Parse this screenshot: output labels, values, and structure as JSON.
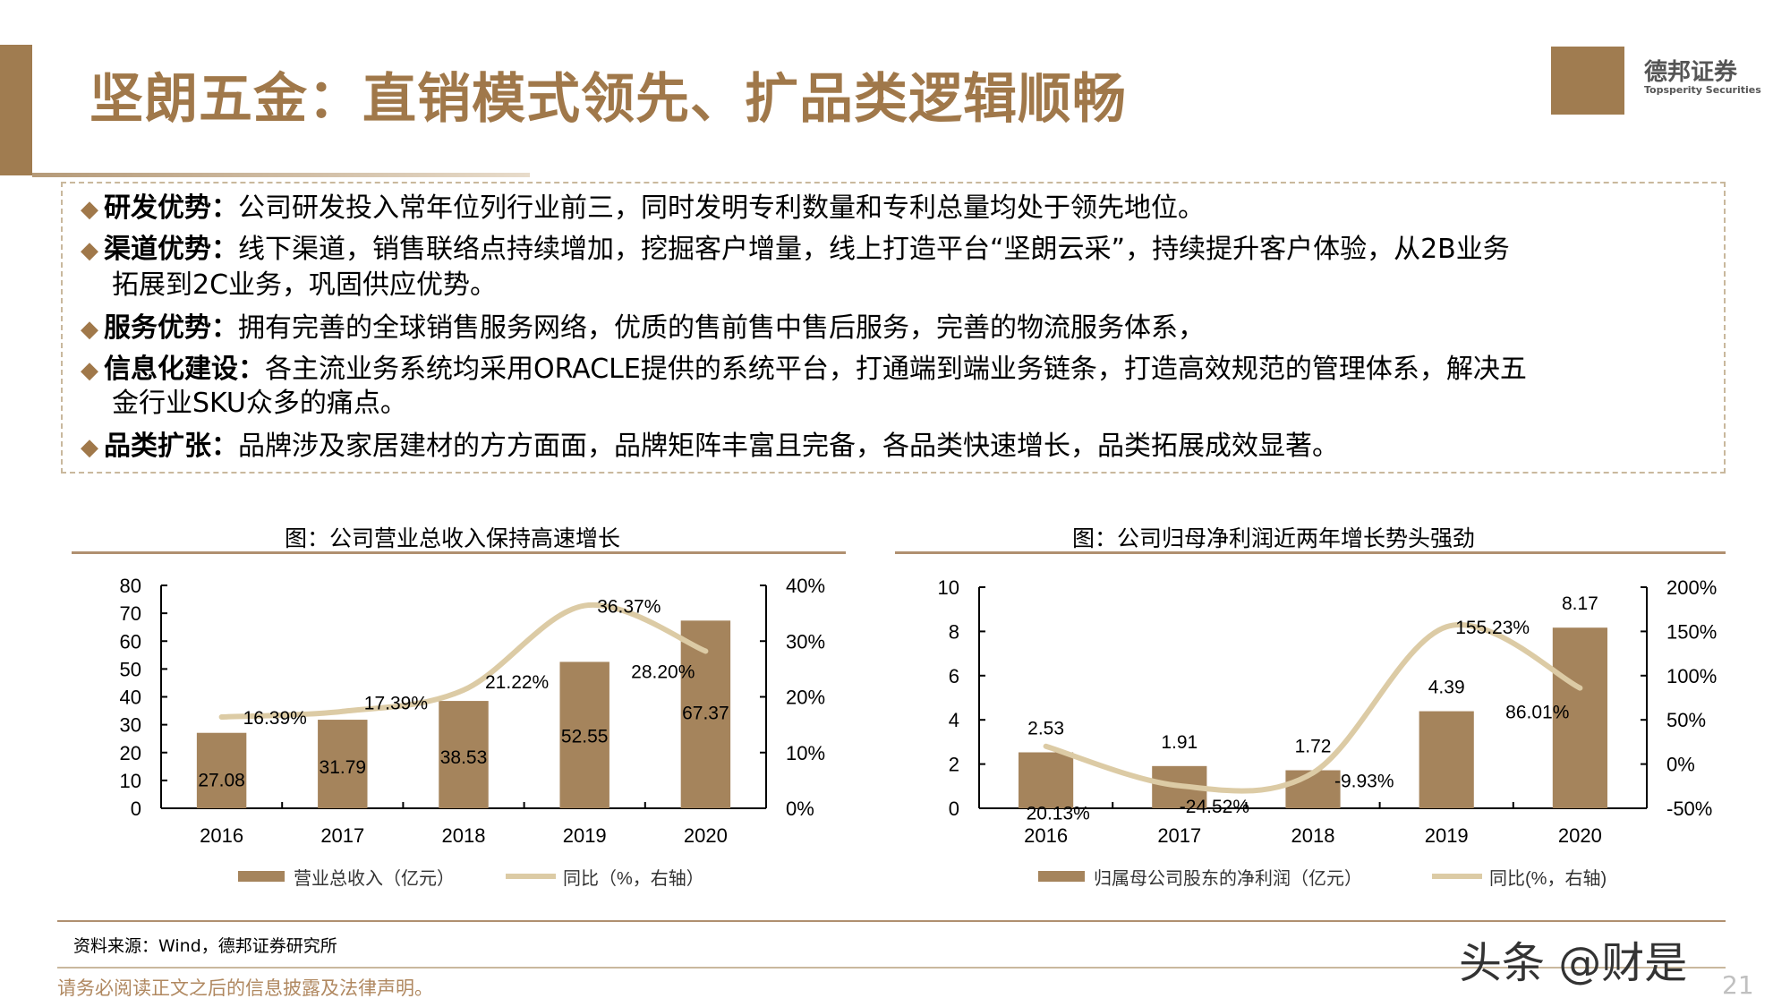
{
  "title": "坚朗五金：直销模式领先、扩品类逻辑顺畅",
  "logo": {
    "cn": "德邦证券",
    "en": "Topsperity Securities"
  },
  "bullets": [
    {
      "head": "研发优势：",
      "lines": [
        "公司研发投入常年位列行业前三，同时发明专利数量和专利总量均处于领先地位。"
      ]
    },
    {
      "head": "渠道优势：",
      "lines": [
        "线下渠道，销售联络点持续增加，挖掘客户增量，线上打造平台“坚朗云采”，持续提升客户体验，从2B业务",
        "拓展到2C业务，巩固供应优势。"
      ]
    },
    {
      "head": "服务优势：",
      "lines": [
        "拥有完善的全球销售服务网络，优质的售前售中售后服务，完善的物流服务体系，"
      ]
    },
    {
      "head": "信息化建设：",
      "lines": [
        "各主流业务系统均采用ORACLE提供的系统平台，打通端到端业务链条，打造高效规范的管理体系，解决五",
        "金行业SKU众多的痛点。"
      ]
    },
    {
      "head": "品类扩张：",
      "lines": [
        "品牌涉及家居建材的方方面面，品牌矩阵丰富且完备，各品类快速增长，品类拓展成效显著。"
      ]
    }
  ],
  "colors": {
    "bar": "#A5845C",
    "line": "#DCCBA5",
    "accent": "#A0784A"
  },
  "chart_data": [
    {
      "type": "bar",
      "title": "图：公司营业总收入保持高速增长",
      "categories": [
        "2016",
        "2017",
        "2018",
        "2019",
        "2020"
      ],
      "series": [
        {
          "name": "营业总收入（亿元）",
          "type": "bar",
          "axis": "left",
          "values": [
            27.08,
            31.79,
            38.53,
            52.55,
            67.37
          ],
          "labels": [
            "27.08",
            "31.79",
            "38.53",
            "52.55",
            "67.37"
          ]
        },
        {
          "name": "同比（%，右轴）",
          "type": "line",
          "axis": "right",
          "values": [
            16.39,
            17.39,
            21.22,
            36.37,
            28.2
          ],
          "labels": [
            "16.39%",
            "17.39%",
            "21.22%",
            "36.37%",
            "28.20%"
          ]
        }
      ],
      "ylim": [
        0,
        80
      ],
      "yticks": [
        "0",
        "10",
        "20",
        "30",
        "40",
        "50",
        "60",
        "70",
        "80"
      ],
      "y2lim": [
        0,
        40
      ],
      "y2ticks": [
        "0%",
        "10%",
        "20%",
        "30%",
        "40%"
      ],
      "legend": "bottom",
      "grid": false
    },
    {
      "type": "bar",
      "title": "图：公司归母净利润近两年增长势头强劲",
      "categories": [
        "2016",
        "2017",
        "2018",
        "2019",
        "2020"
      ],
      "series": [
        {
          "name": "归属母公司股东的净利润（亿元）",
          "type": "bar",
          "axis": "left",
          "values": [
            2.53,
            1.91,
            1.72,
            4.39,
            8.17
          ],
          "labels": [
            "2.53",
            "1.91",
            "1.72",
            "4.39",
            "8.17"
          ]
        },
        {
          "name": "同比(%，右轴)",
          "type": "line",
          "axis": "right",
          "values": [
            20.13,
            -24.52,
            -9.93,
            155.23,
            86.01
          ],
          "labels": [
            "20.13%",
            "-24.52%",
            "-9.93%",
            "155.23%",
            "86.01%"
          ]
        }
      ],
      "ylim": [
        0,
        10
      ],
      "yticks": [
        "0",
        "2",
        "4",
        "6",
        "8",
        "10"
      ],
      "y2lim": [
        -50,
        200
      ],
      "y2ticks": [
        "-50%",
        "0%",
        "50%",
        "100%",
        "150%",
        "200%"
      ],
      "legend": "bottom",
      "grid": false
    }
  ],
  "source": "资料来源：Wind，德邦证券研究所",
  "disclaimer": "请务必阅读正文之后的信息披露及法律声明。",
  "page_number": "21",
  "watermark": "头条 @财是"
}
